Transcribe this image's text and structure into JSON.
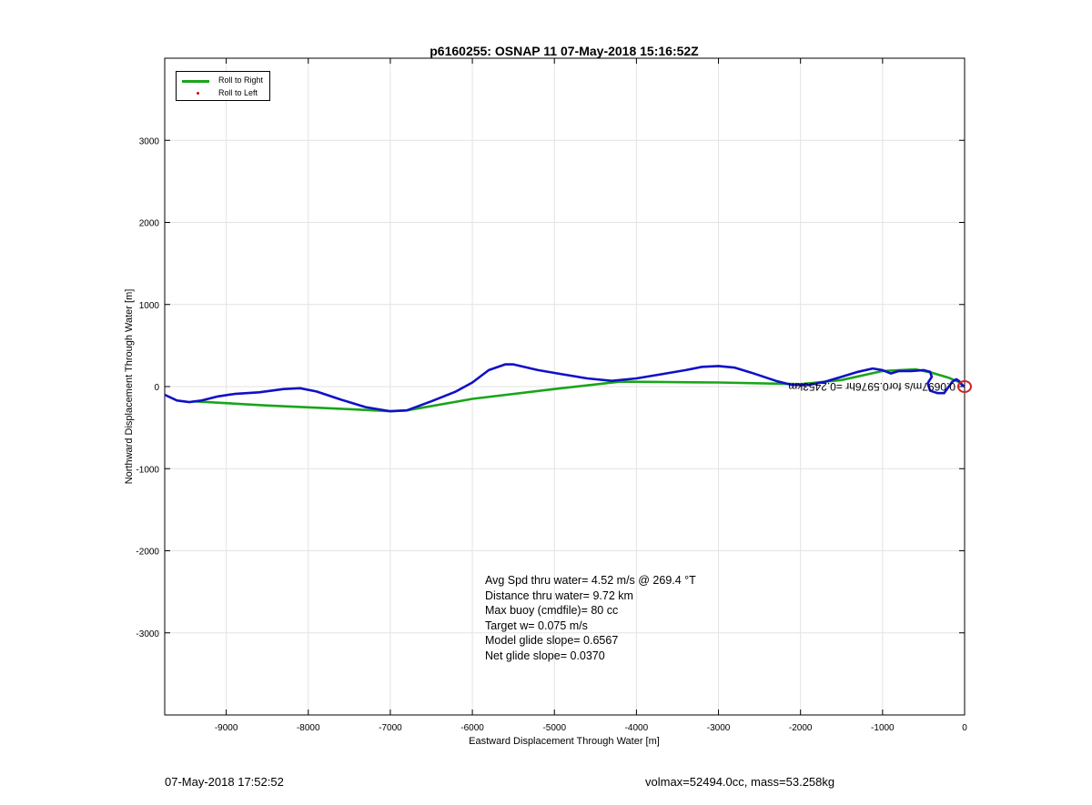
{
  "chart_data": {
    "type": "line",
    "title": "p6160255: OSNAP 11 07-May-2018 15:16:52Z",
    "xlabel": "Eastward Displacement Through Water [m]",
    "ylabel": "Northward Displacement Through Water [m]",
    "xlim": [
      -9750,
      0
    ],
    "ylim": [
      -4000,
      4000
    ],
    "x_ticks": [
      -9000,
      -8000,
      -7000,
      -6000,
      -5000,
      -4000,
      -3000,
      -2000,
      -1000,
      0
    ],
    "x_tick_labels": [
      "-9000",
      "-8000",
      "-7000",
      "-6000",
      "-5000",
      "-4000",
      "-3000",
      "-2000",
      "-1000",
      "0"
    ],
    "y_ticks": [
      3000,
      2000,
      1000,
      0,
      -1000,
      -2000,
      -3000
    ],
    "y_tick_labels": [
      "3000",
      "2000",
      "1000",
      "0",
      "-1000",
      "-2000",
      "-3000"
    ],
    "grid": true,
    "legend": "top-left",
    "legend_entries": [
      "Roll to Right",
      "Roll to Left"
    ],
    "colors": {
      "roll_right": "#1aa51a",
      "roll_left": "#e00000",
      "track": "#1010c8",
      "marker": "#d42020"
    },
    "series": [
      {
        "name": "Roll to Right",
        "x": [
          -9400,
          -8500,
          -7600,
          -7000,
          -6800,
          -6000,
          -5000,
          -4200,
          -3000,
          -2000,
          -1500,
          -1000,
          -600,
          -400,
          -200,
          -80,
          0
        ],
        "y": [
          -180,
          -230,
          -270,
          -300,
          -290,
          -150,
          -30,
          60,
          50,
          30,
          80,
          190,
          210,
          170,
          110,
          60,
          0
        ]
      },
      {
        "x": [
          -9750,
          -9600,
          -9450,
          -9300,
          -9100,
          -8900,
          -8600,
          -8300,
          -8100,
          -7900,
          -7600,
          -7300,
          -7000,
          -6800,
          -6500,
          -6200,
          -6000,
          -5800,
          -5600,
          -5500,
          -5200,
          -4900,
          -4600,
          -4300,
          -4000,
          -3700,
          -3400,
          -3200,
          -3000,
          -2800,
          -2600,
          -2300,
          -2100,
          -1900,
          -1700,
          -1500,
          -1300,
          -1120,
          -1000,
          -900,
          -800,
          -650,
          -500,
          -420,
          -400,
          -450,
          -420,
          -330,
          -250,
          -200,
          -150,
          -100,
          -60,
          -30,
          -10,
          0
        ],
        "y": [
          -100,
          -170,
          -190,
          -170,
          -120,
          -90,
          -70,
          -30,
          -20,
          -60,
          -160,
          -250,
          -300,
          -290,
          -180,
          -60,
          50,
          200,
          270,
          270,
          200,
          150,
          100,
          70,
          100,
          150,
          200,
          240,
          250,
          230,
          170,
          70,
          20,
          20,
          60,
          120,
          180,
          220,
          200,
          160,
          190,
          190,
          200,
          180,
          120,
          40,
          -50,
          -80,
          -80,
          -10,
          60,
          90,
          60,
          20,
          5,
          0
        ]
      }
    ],
    "annotations": [
      "Avg Spd thru water=  4.52 m/s @ 269.4 °T",
      "Distance thru water=  9.72 km",
      "Max buoy (cmdfile)= 80 cc",
      "Target w= 0.075 m/s",
      "Model glide slope= 0.6567",
      "Net glide slope= 0.0370"
    ],
    "overlay_text": "0.0697m/s for0.5976hr =0.2453km"
  },
  "footer": {
    "date": "07-May-2018 17:52:52",
    "volmax": "volmax=52494.0cc, mass=53.258kg"
  }
}
